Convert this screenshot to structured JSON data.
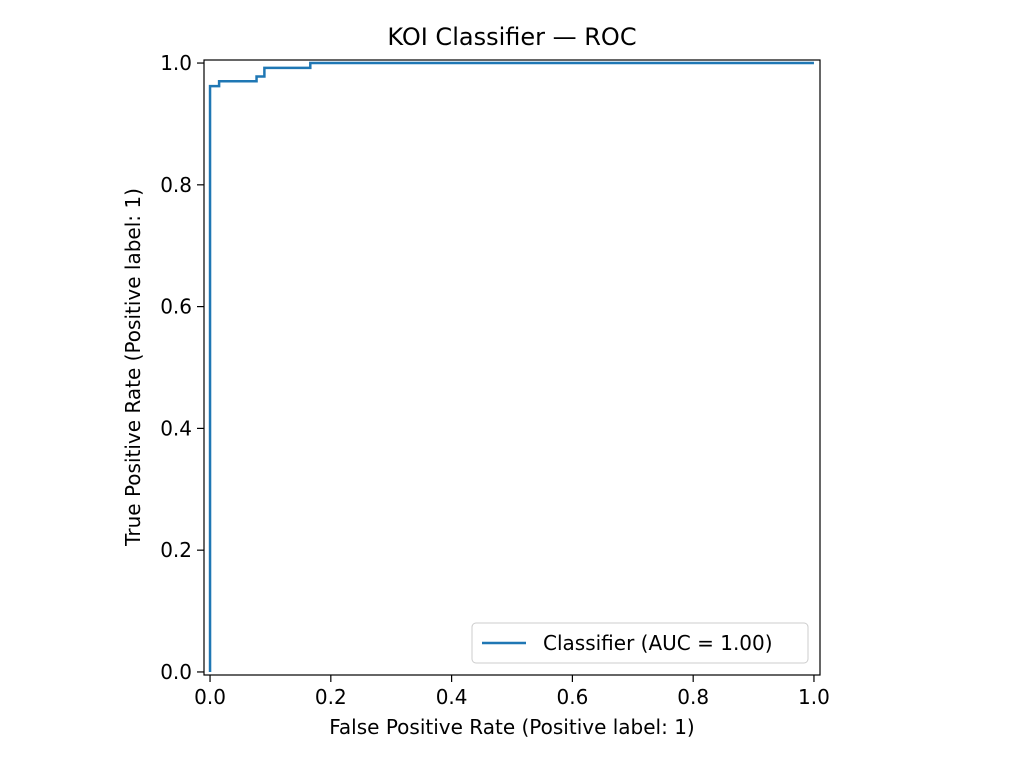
{
  "chart_data": {
    "type": "line",
    "title": "KOI Classifier — ROC",
    "xlabel": "False Positive Rate (Positive label: 1)",
    "ylabel": "True Positive Rate (Positive label: 1)",
    "xlim": [
      -0.01,
      1.01
    ],
    "ylim": [
      -0.005,
      1.005
    ],
    "xticks": [
      0.0,
      0.2,
      0.4,
      0.6,
      0.8,
      1.0
    ],
    "xtick_labels": [
      "0.0",
      "0.2",
      "0.4",
      "0.6",
      "0.8",
      "1.0"
    ],
    "yticks": [
      0.0,
      0.2,
      0.4,
      0.6,
      0.8,
      1.0
    ],
    "ytick_labels": [
      "0.0",
      "0.2",
      "0.4",
      "0.6",
      "0.8",
      "1.0"
    ],
    "grid": false,
    "legend": {
      "location": "lower-right",
      "entries": [
        "Classifier (AUC = 1.00)"
      ]
    },
    "series": [
      {
        "name": "Classifier (AUC = 1.00)",
        "color": "#1f77b4",
        "x": [
          0.0,
          0.0,
          0.0,
          0.015,
          0.015,
          0.077,
          0.077,
          0.09,
          0.09,
          0.166,
          0.166,
          1.0
        ],
        "y": [
          0.0,
          0.962,
          0.962,
          0.962,
          0.97,
          0.97,
          0.978,
          0.978,
          0.992,
          0.992,
          1.0,
          1.0
        ]
      }
    ]
  }
}
